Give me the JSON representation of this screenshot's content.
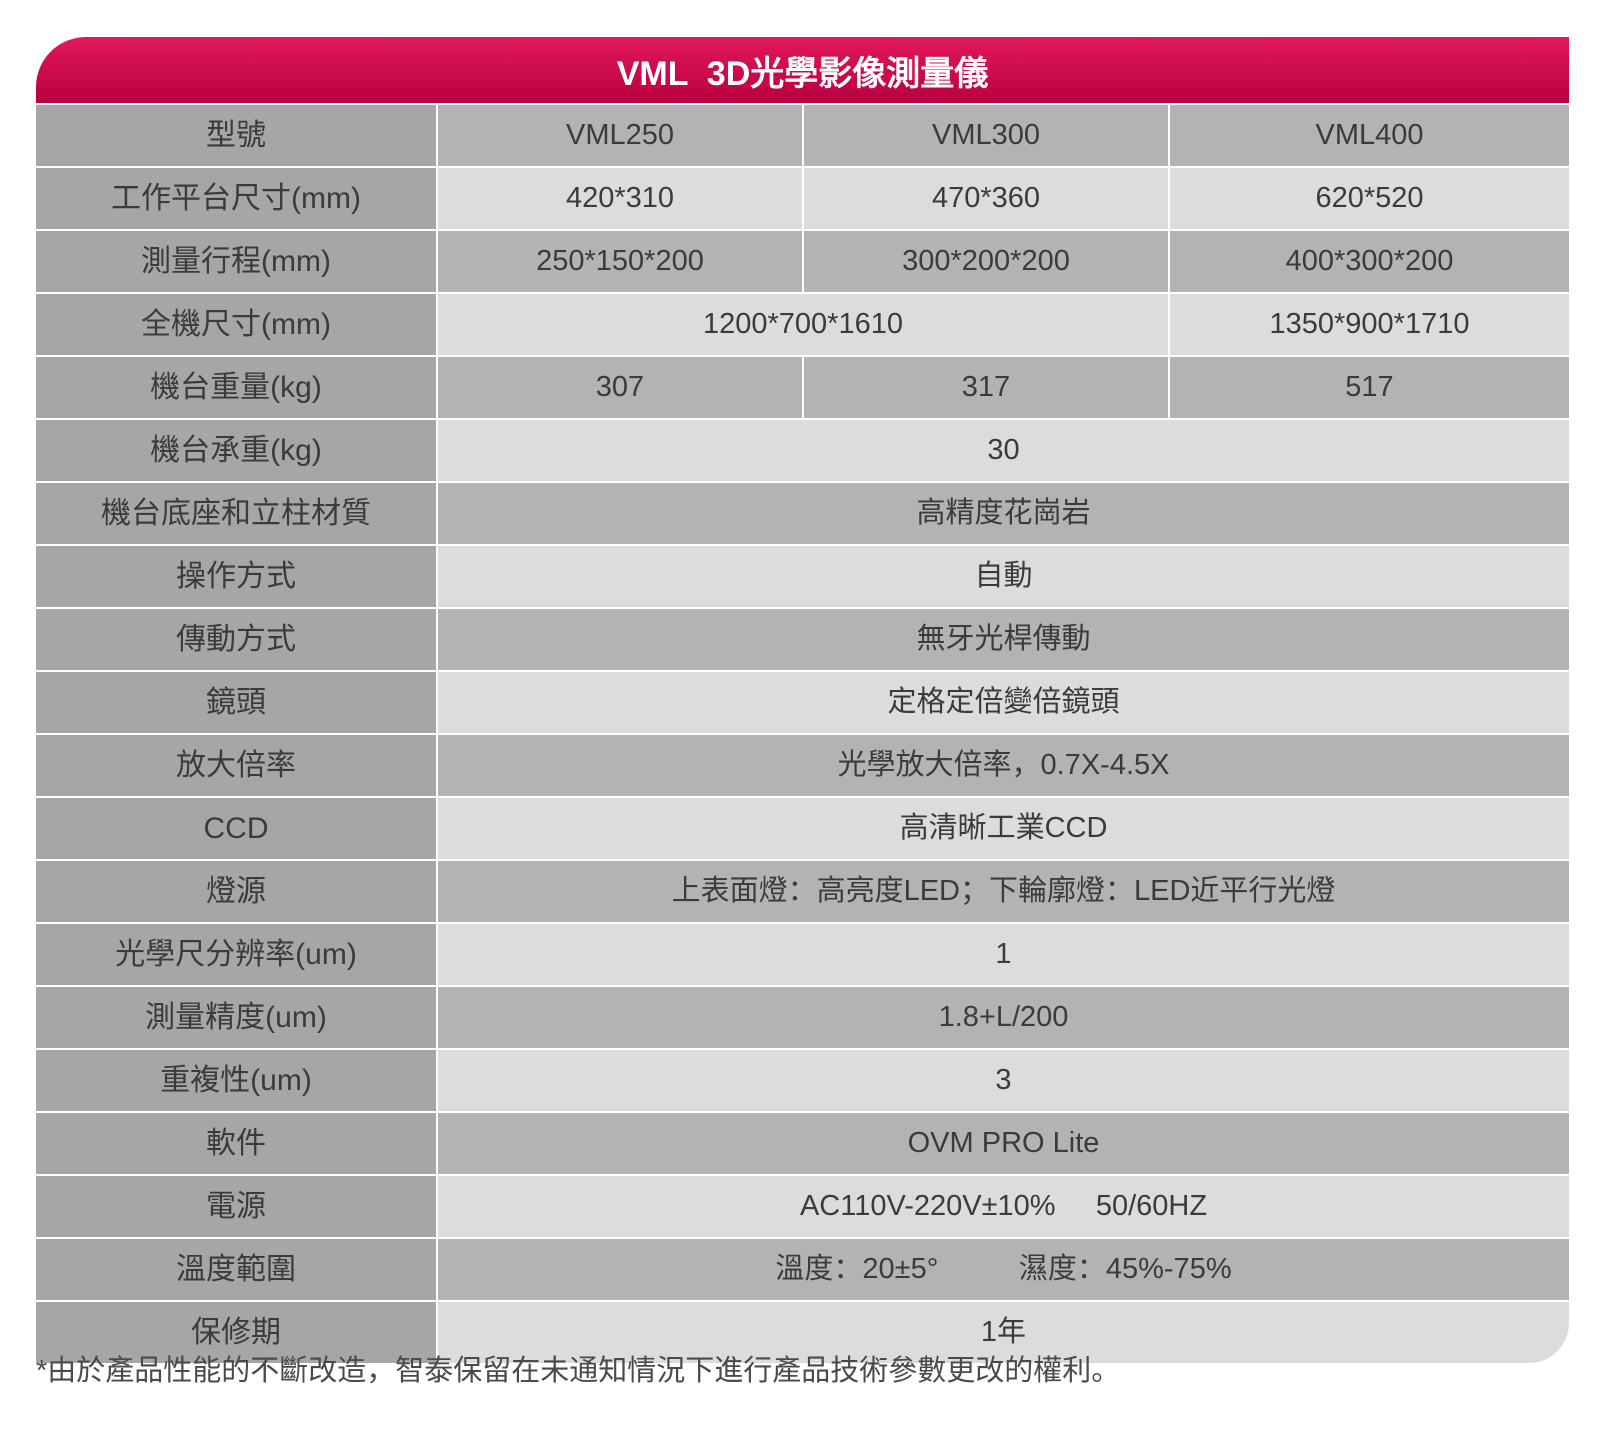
{
  "title": "VML  3D光學影像測量儀",
  "models": [
    "VML250",
    "VML300",
    "VML400"
  ],
  "rows": [
    {
      "label": "型號",
      "values": [
        "VML250",
        "VML300",
        "VML400"
      ]
    },
    {
      "label": "工作平台尺寸(mm)",
      "values": [
        "420*310",
        "470*360",
        "620*520"
      ]
    },
    {
      "label": "測量行程(mm)",
      "values": [
        "250*150*200",
        "300*200*200",
        "400*300*200"
      ]
    },
    {
      "label": "全機尺寸(mm)",
      "values": [
        "1200*700*1610",
        "1350*900*1710"
      ]
    },
    {
      "label": "機台重量(kg)",
      "values": [
        "307",
        "317",
        "517"
      ]
    },
    {
      "label": "機台承重(kg)",
      "values": [
        "30"
      ]
    },
    {
      "label": "機台底座和立柱材質",
      "values": [
        "高精度花崗岩"
      ]
    },
    {
      "label": "操作方式",
      "values": [
        "自動"
      ]
    },
    {
      "label": "傳動方式",
      "values": [
        "無牙光桿傳動"
      ]
    },
    {
      "label": "鏡頭",
      "values": [
        "定格定倍變倍鏡頭"
      ]
    },
    {
      "label": "放大倍率",
      "values": [
        "光學放大倍率，0.7X-4.5X"
      ]
    },
    {
      "label": "CCD",
      "values": [
        "高清晰工業CCD"
      ]
    },
    {
      "label": "燈源",
      "values": [
        "上表面燈：高亮度LED；下輪廓燈：LED近平行光燈"
      ]
    },
    {
      "label": "光學尺分辨率(um)",
      "values": [
        "1"
      ]
    },
    {
      "label": "測量精度(um)",
      "values": [
        "1.8+L/200"
      ]
    },
    {
      "label": "重複性(um)",
      "values": [
        "3"
      ]
    },
    {
      "label": "軟件",
      "values": [
        "OVM PRO Lite"
      ]
    },
    {
      "label": "電源",
      "values": [
        "AC110V-220V±10%     50/60HZ"
      ]
    },
    {
      "label": "溫度範圍",
      "values": [
        "溫度：20±5°          濕度：45%-75%"
      ]
    },
    {
      "label": "保修期",
      "values": [
        "1年"
      ]
    }
  ],
  "footnote": "*由於產品性能的不斷改造，智泰保留在未通知情況下進行產品技術參數更改的權利。"
}
